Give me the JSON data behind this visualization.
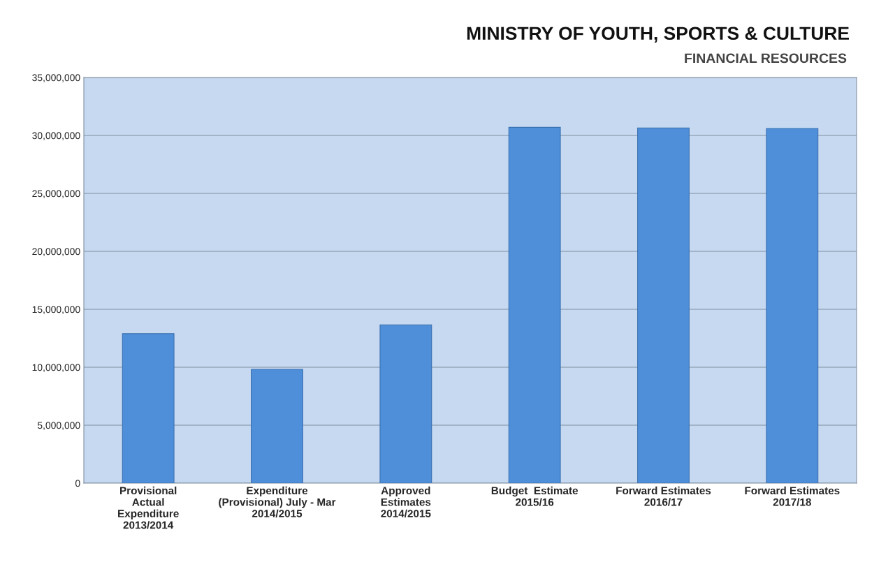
{
  "chart_data": {
    "type": "bar",
    "title": "MINISTRY OF YOUTH, SPORTS & CULTURE",
    "subtitle": "FINANCIAL RESOURCES",
    "categories": [
      "Provisional\nActual\nExpenditure\n2013/2014",
      "Expenditure\n(Provisional) July - Mar\n2014/2015",
      "Approved\nEstimates\n2014/2015",
      "Budget  Estimate\n2015/16",
      "Forward Estimates\n2016/17",
      "Forward Estimates\n2017/18"
    ],
    "values": [
      12900000,
      9820000,
      13660000,
      30700000,
      30650000,
      30600000
    ],
    "color": "#4f8fd9",
    "ylim": [
      0,
      35000000
    ],
    "yticks": [
      {
        "value": 0,
        "label": "0"
      },
      {
        "value": 5000000,
        "label": "5,000,000"
      },
      {
        "value": 10000000,
        "label": "10,000,000"
      },
      {
        "value": 15000000,
        "label": "15,000,000"
      },
      {
        "value": 20000000,
        "label": "20,000,000"
      },
      {
        "value": 25000000,
        "label": "25,000,000"
      },
      {
        "value": 30000000,
        "label": "30,000,000"
      },
      {
        "value": 35000000,
        "label": "35,000,000"
      }
    ],
    "grid": "y"
  }
}
